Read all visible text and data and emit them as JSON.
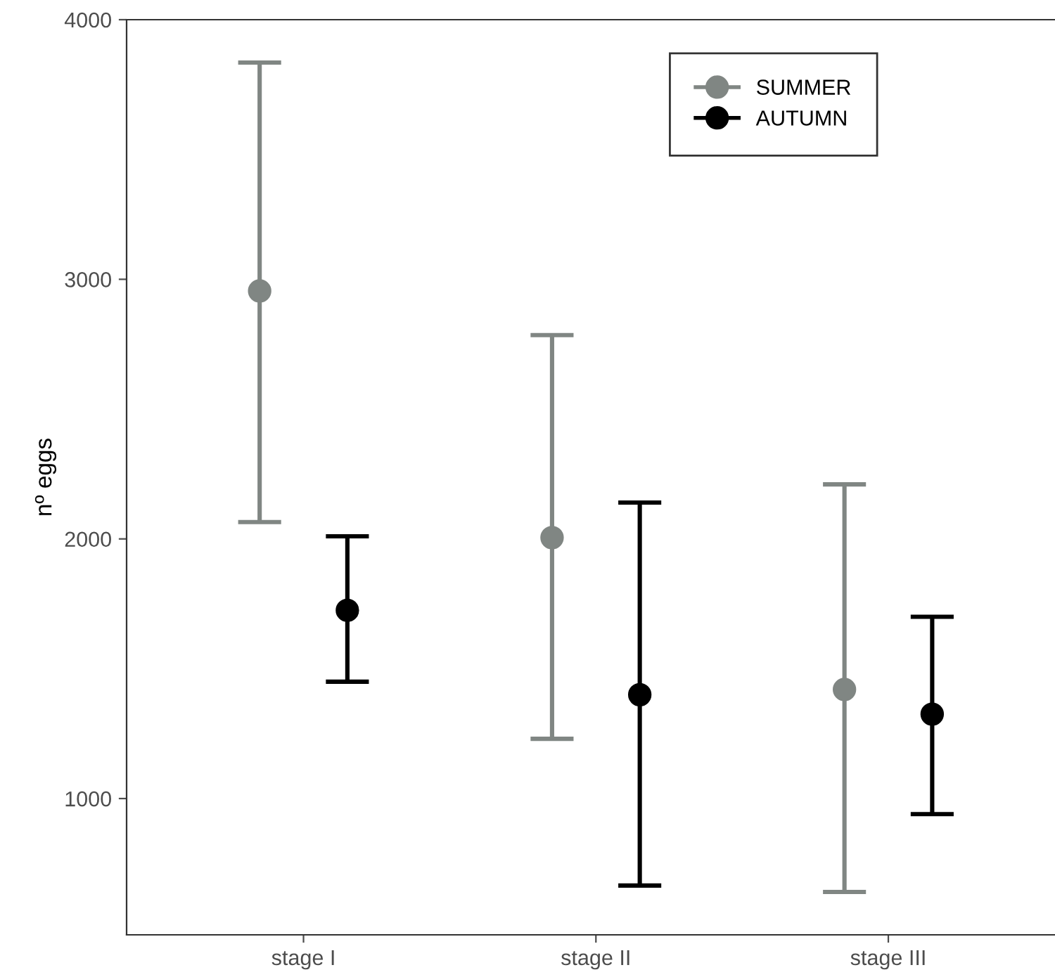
{
  "chart_data": {
    "type": "scatter",
    "ylabel": "nº eggs",
    "categories": [
      "stage I",
      "stage II",
      "stage III"
    ],
    "series": [
      {
        "name": "SUMMER",
        "color": "#808683",
        "values": [
          2955,
          2005,
          1420
        ],
        "errors": [
          [
            2065,
            3835
          ],
          [
            1230,
            2785
          ],
          [
            640,
            2210
          ]
        ]
      },
      {
        "name": "AUTUMN",
        "color": "#000000",
        "values": [
          1725,
          1400,
          1325
        ],
        "errors": [
          [
            1450,
            2010
          ],
          [
            665,
            2140
          ],
          [
            940,
            1700
          ]
        ]
      }
    ],
    "ylim": [
      475,
      4000
    ],
    "yticks": [
      1000,
      2000,
      3000,
      4000
    ],
    "grid": false,
    "legend": "top right",
    "marker": "circle"
  }
}
